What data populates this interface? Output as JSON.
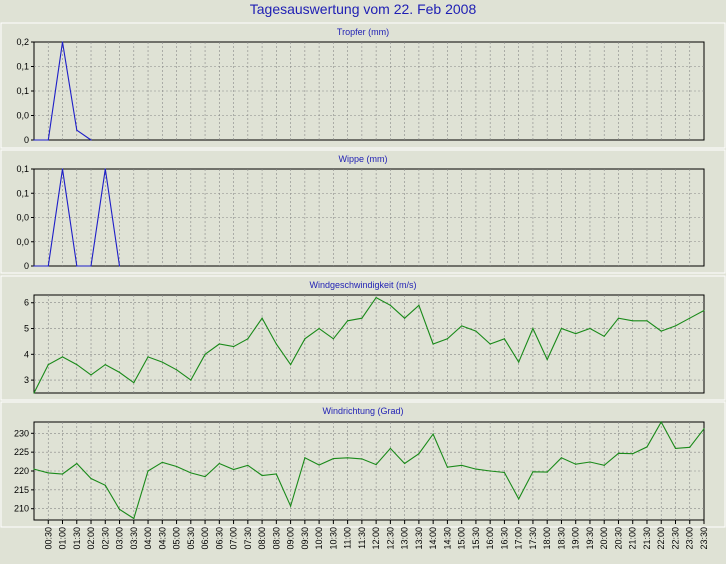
{
  "title": "Tagesauswertung vom 22. Feb 2008",
  "x_ticks": [
    "00:30",
    "01:00",
    "01:30",
    "02:00",
    "02:30",
    "03:00",
    "03:30",
    "04:00",
    "04:30",
    "05:00",
    "05:30",
    "06:00",
    "06:30",
    "07:00",
    "07:30",
    "08:00",
    "08:30",
    "09:00",
    "09:30",
    "10:00",
    "10:30",
    "11:00",
    "11:30",
    "12:00",
    "12:30",
    "13:00",
    "13:30",
    "14:00",
    "14:30",
    "15:00",
    "15:30",
    "16:00",
    "16:30",
    "17:00",
    "17:30",
    "18:00",
    "18:30",
    "19:00",
    "19:30",
    "20:00",
    "20:30",
    "21:00",
    "21:30",
    "22:00",
    "22:30",
    "23:00",
    "23:30"
  ],
  "colors": {
    "background": "#dfe2d5",
    "title": "#1e1eb4",
    "rain_series": "#1e1ec8",
    "wind_series": "#1a8a1a",
    "grid": "#888888"
  },
  "chart_data": [
    {
      "type": "line",
      "title": "Tropfer (mm)",
      "x": [
        "00:00",
        "00:30",
        "01:00",
        "01:30",
        "02:00"
      ],
      "y_tick_labels": [
        "0",
        "0,0",
        "0,1",
        "0,1",
        "0,2"
      ],
      "ylim": [
        0,
        0.2
      ],
      "series": [
        {
          "values": [
            0,
            0,
            0.2,
            0.02,
            0
          ]
        }
      ],
      "grid": true
    },
    {
      "type": "line",
      "title": "Wippe (mm)",
      "x": [
        "00:00",
        "00:30",
        "01:00",
        "01:30",
        "02:00",
        "02:30",
        "03:00"
      ],
      "y_tick_labels": [
        "0",
        "0,0",
        "0,0",
        "0,1",
        "0,1"
      ],
      "ylim": [
        0,
        0.2
      ],
      "series": [
        {
          "values": [
            0,
            0,
            0.2,
            0,
            0,
            0.2,
            0
          ]
        }
      ],
      "grid": true
    },
    {
      "type": "line",
      "title": "Windgeschwindigkeit (m/s)",
      "x": [
        "00:00",
        "00:30",
        "01:00",
        "01:30",
        "02:00",
        "02:30",
        "03:00",
        "03:30",
        "04:00",
        "04:30",
        "05:00",
        "05:30",
        "06:00",
        "06:30",
        "07:00",
        "07:30",
        "08:00",
        "08:30",
        "09:00",
        "09:30",
        "10:00",
        "10:30",
        "11:00",
        "11:30",
        "12:00",
        "12:30",
        "13:00",
        "13:30",
        "14:00",
        "14:30",
        "15:00",
        "15:30",
        "16:00",
        "16:30",
        "17:00",
        "17:30",
        "18:00",
        "18:30",
        "19:00",
        "19:30",
        "20:00",
        "20:30",
        "21:00",
        "21:30",
        "22:00",
        "22:30",
        "23:00",
        "23:30"
      ],
      "y_ticks": [
        3,
        4,
        5,
        6
      ],
      "ylim": [
        2.5,
        6.3
      ],
      "series": [
        {
          "values": [
            2.5,
            3.6,
            3.9,
            3.6,
            3.2,
            3.6,
            3.3,
            2.9,
            3.9,
            3.7,
            3.4,
            3.0,
            4.0,
            4.4,
            4.3,
            4.6,
            5.4,
            4.4,
            3.6,
            4.6,
            5.0,
            4.6,
            5.3,
            5.4,
            6.2,
            5.9,
            5.4,
            5.9,
            4.4,
            4.6,
            5.1,
            4.9,
            4.4,
            4.6,
            3.7,
            5.0,
            3.8,
            5.0,
            4.8,
            5.0,
            4.7,
            5.4,
            5.3,
            5.3,
            4.9,
            5.1,
            5.4,
            5.7
          ]
        }
      ],
      "grid": true
    },
    {
      "type": "line",
      "title": "Windrichtung (Grad)",
      "x": [
        "00:00",
        "00:30",
        "01:00",
        "01:30",
        "02:00",
        "02:30",
        "03:00",
        "03:30",
        "04:00",
        "04:30",
        "05:00",
        "05:30",
        "06:00",
        "06:30",
        "07:00",
        "07:30",
        "08:00",
        "08:30",
        "09:00",
        "09:30",
        "10:00",
        "10:30",
        "11:00",
        "11:30",
        "12:00",
        "12:30",
        "13:00",
        "13:30",
        "14:00",
        "14:30",
        "15:00",
        "15:30",
        "16:00",
        "16:30",
        "17:00",
        "17:30",
        "18:00",
        "18:30",
        "19:00",
        "19:30",
        "20:00",
        "20:30",
        "21:00",
        "21:30",
        "22:00",
        "22:30",
        "23:00",
        "23:30"
      ],
      "y_ticks": [
        210,
        215,
        220,
        225,
        230
      ],
      "ylim": [
        207,
        233
      ],
      "series": [
        {
          "values": [
            220.5,
            219.5,
            219.2,
            222,
            218,
            216.2,
            209.8,
            207.4,
            220,
            222.3,
            221.2,
            219.5,
            218.5,
            222,
            220.4,
            221.5,
            218.8,
            219.2,
            210.7,
            223.5,
            221.6,
            223.3,
            223.5,
            223.2,
            221.7,
            226,
            222,
            224.6,
            229.8,
            221,
            221.5,
            220.5,
            220,
            219.6,
            212.6,
            219.8,
            219.7,
            223.5,
            221.8,
            222.4,
            221.5,
            224.7,
            224.6,
            226.4,
            233,
            226,
            226.3,
            231.2
          ]
        }
      ],
      "grid": true
    }
  ]
}
